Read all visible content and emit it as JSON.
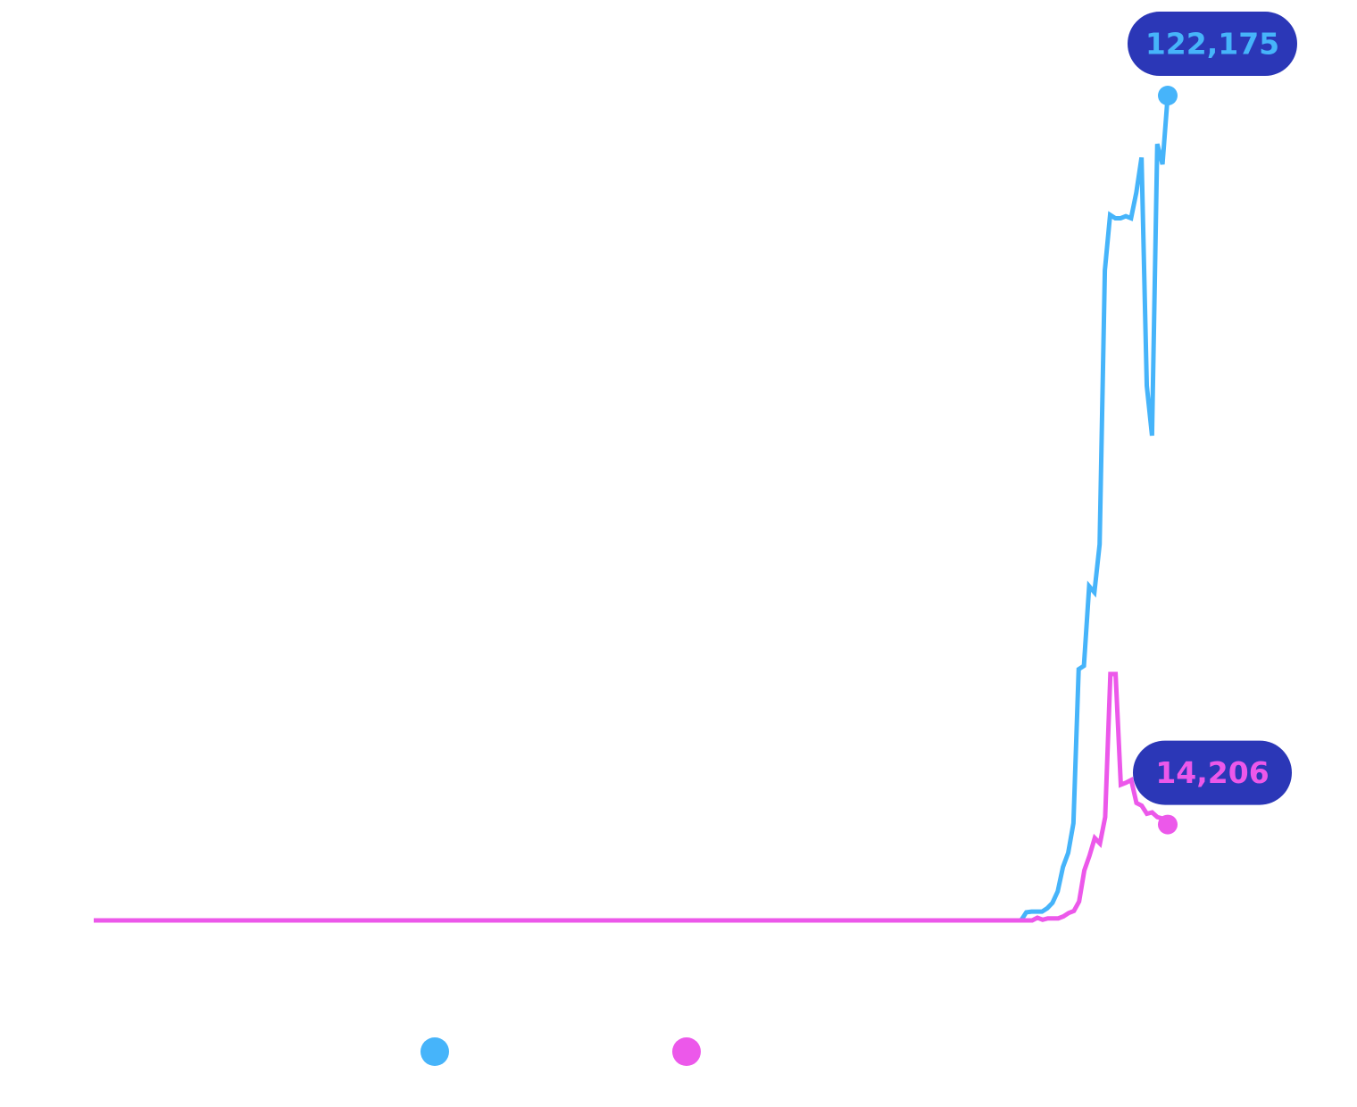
{
  "chart_data": {
    "type": "line",
    "title": "",
    "xlabel": "",
    "ylabel": "",
    "ylim": [
      0,
      128000
    ],
    "grid": false,
    "legend_position": "bottom",
    "series": [
      {
        "color": "#46b4fa",
        "values": [
          0,
          0,
          0,
          0,
          0,
          0,
          0,
          0,
          0,
          0,
          0,
          0,
          0,
          0,
          0,
          0,
          0,
          0,
          0,
          0,
          0,
          0,
          0,
          0,
          0,
          0,
          0,
          0,
          0,
          0,
          0,
          0,
          0,
          0,
          0,
          0,
          0,
          0,
          0,
          0,
          0,
          0,
          0,
          0,
          0,
          0,
          0,
          0,
          0,
          0,
          0,
          0,
          0,
          0,
          0,
          0,
          0,
          0,
          0,
          0,
          0,
          0,
          0,
          0,
          0,
          0,
          0,
          0,
          0,
          0,
          0,
          0,
          0,
          0,
          0,
          0,
          0,
          0,
          0,
          0,
          0,
          0,
          0,
          0,
          0,
          0,
          0,
          0,
          0,
          0,
          0,
          0,
          0,
          0,
          0,
          0,
          0,
          0,
          0,
          0,
          0,
          0,
          0,
          0,
          0,
          0,
          0,
          0,
          0,
          0,
          0,
          0,
          0,
          0,
          0,
          0,
          0,
          0,
          0,
          0,
          0,
          0,
          0,
          0,
          0,
          0,
          0,
          0,
          0,
          0,
          0,
          0,
          0,
          0,
          0,
          0,
          0,
          0,
          0,
          0,
          0,
          0,
          0,
          0,
          0,
          0,
          0,
          0,
          0,
          0,
          0,
          0,
          0,
          0,
          0,
          0,
          0,
          0,
          0,
          0,
          0,
          0,
          0,
          0,
          0,
          0,
          0,
          0,
          0,
          0,
          0,
          0,
          0,
          0,
          0,
          0,
          0,
          0,
          1200,
          1300,
          1300,
          1300,
          1800,
          2600,
          4300,
          7900,
          10000,
          14400,
          37200,
          37700,
          49500,
          48600,
          55700,
          96300,
          104500,
          104000,
          104000,
          104300,
          104000,
          107800,
          113000,
          79200,
          71800,
          115000,
          112000,
          122175
        ],
        "endpoint_label": "122,175"
      },
      {
        "color": "#ec58ea",
        "values": [
          0,
          0,
          0,
          0,
          0,
          0,
          0,
          0,
          0,
          0,
          0,
          0,
          0,
          0,
          0,
          0,
          0,
          0,
          0,
          0,
          0,
          0,
          0,
          0,
          0,
          0,
          0,
          0,
          0,
          0,
          0,
          0,
          0,
          0,
          0,
          0,
          0,
          0,
          0,
          0,
          0,
          0,
          0,
          0,
          0,
          0,
          0,
          0,
          0,
          0,
          0,
          0,
          0,
          0,
          0,
          0,
          0,
          0,
          0,
          0,
          0,
          0,
          0,
          0,
          0,
          0,
          0,
          0,
          0,
          0,
          0,
          0,
          0,
          0,
          0,
          0,
          0,
          0,
          0,
          0,
          0,
          0,
          0,
          0,
          0,
          0,
          0,
          0,
          0,
          0,
          0,
          0,
          0,
          0,
          0,
          0,
          0,
          0,
          0,
          0,
          0,
          0,
          0,
          0,
          0,
          0,
          0,
          0,
          0,
          0,
          0,
          0,
          0,
          0,
          0,
          0,
          0,
          0,
          0,
          0,
          0,
          0,
          0,
          0,
          0,
          0,
          0,
          0,
          0,
          0,
          0,
          0,
          0,
          0,
          0,
          0,
          0,
          0,
          0,
          0,
          0,
          0,
          0,
          0,
          0,
          0,
          0,
          0,
          0,
          0,
          0,
          0,
          0,
          0,
          0,
          0,
          0,
          0,
          0,
          0,
          0,
          0,
          0,
          0,
          0,
          0,
          0,
          0,
          0,
          0,
          0,
          0,
          0,
          0,
          0,
          0,
          0,
          0,
          0,
          0,
          0,
          400,
          100,
          300,
          300,
          300,
          600,
          1100,
          1400,
          2800,
          7400,
          9600,
          12200,
          11400,
          15300,
          36500,
          36500,
          20100,
          20400,
          20800,
          17400,
          17000,
          15800,
          16000,
          15300,
          15100,
          14206
        ],
        "endpoint_label": "14,206"
      }
    ],
    "callout_colors": {
      "background": "#2b37b7"
    }
  }
}
